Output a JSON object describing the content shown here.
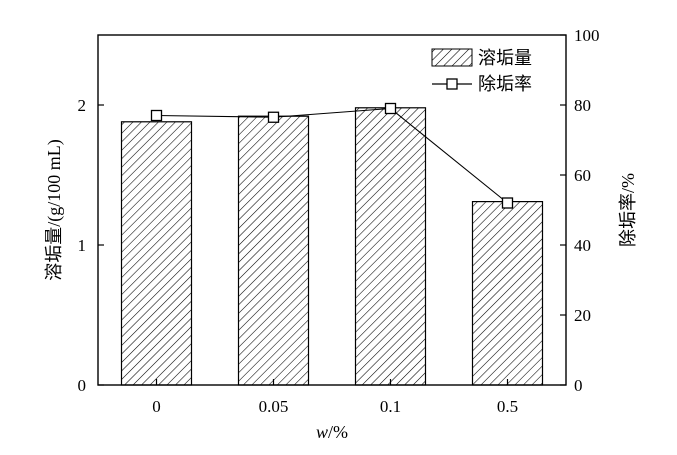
{
  "chart_data": {
    "type": "bar",
    "categories": [
      "0",
      "0.05",
      "0.1",
      "0.5"
    ],
    "xlabel_italic": "w",
    "xlabel_rest": "/%",
    "ylabel_left": "溶垢量/(g/100 mL)",
    "ylabel_right": "除垢率/%",
    "ylim_left": [
      0,
      2.5
    ],
    "ylim_right": [
      0,
      100
    ],
    "yticks_left": [
      0,
      1,
      2
    ],
    "yticks_right": [
      0,
      20,
      40,
      60,
      80,
      100
    ],
    "legend_position": "top-right",
    "series": [
      {
        "name": "溶垢量",
        "kind": "bar",
        "axis": "left",
        "values": [
          1.88,
          1.92,
          1.98,
          1.31
        ]
      },
      {
        "name": "除垢率",
        "kind": "line",
        "axis": "right",
        "marker": "square",
        "values": [
          77,
          76.5,
          79,
          52
        ]
      }
    ]
  }
}
